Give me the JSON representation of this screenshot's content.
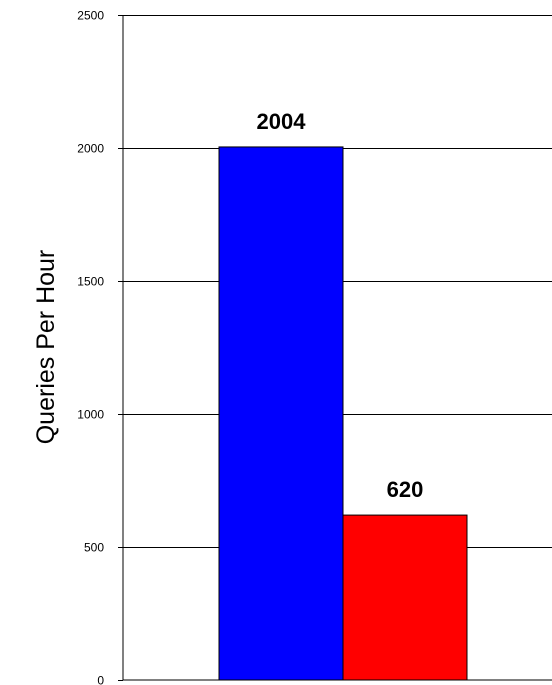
{
  "chart_data": {
    "type": "bar",
    "title": "",
    "xlabel": "",
    "ylabel": "Queries Per Hour",
    "ylim": [
      0,
      2500
    ],
    "yticks": [
      0,
      500,
      1000,
      1500,
      2000,
      2500
    ],
    "grid": true,
    "legend": "none",
    "categories": [
      "",
      ""
    ],
    "values": [
      2004,
      620
    ],
    "data_labels": [
      "2004",
      "620"
    ],
    "colors": [
      "#0000ff",
      "#ff0000"
    ]
  }
}
